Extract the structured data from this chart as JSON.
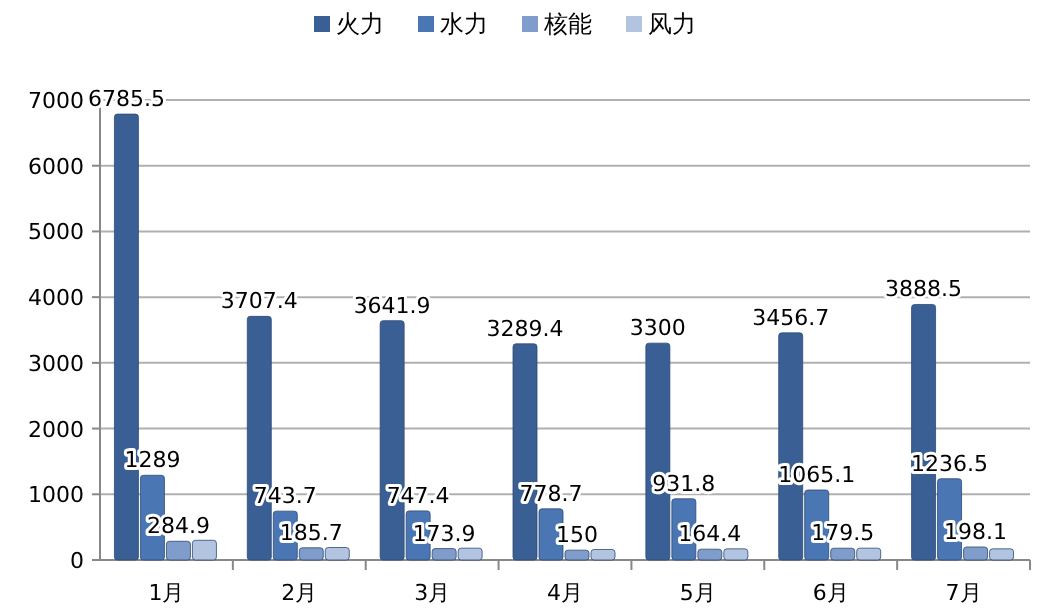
{
  "chart_data": {
    "type": "bar",
    "categories": [
      "1月",
      "2月",
      "3月",
      "4月",
      "5月",
      "6月",
      "7月"
    ],
    "series": [
      {
        "name": "火力",
        "color": "#3a5f94",
        "values": [
          6785.5,
          3707.4,
          3641.9,
          3289.4,
          3300,
          3456.7,
          3888.5
        ],
        "value_labels": [
          "6785.5",
          "3707.4",
          "3641.9",
          "3289.4",
          "3300",
          "3456.7",
          "3888.5"
        ]
      },
      {
        "name": "水力",
        "color": "#4a76b4",
        "values": [
          1289,
          743.7,
          747.4,
          778.7,
          931.8,
          1065.1,
          1236.5
        ],
        "value_labels": [
          "1289",
          "743.7",
          "747.4",
          "778.7",
          "931.8",
          "1065.1",
          "1236.5"
        ]
      },
      {
        "name": "核能",
        "color": "#7f9ccb",
        "values": [
          284.9,
          185.7,
          173.9,
          150,
          164.4,
          179.5,
          198.1
        ],
        "value_labels": [
          "284.9",
          "185.7",
          "173.9",
          "150",
          "164.4",
          "179.5",
          "198.1"
        ]
      },
      {
        "name": "风力",
        "color": "#b3c4e0",
        "values": [
          300,
          190,
          180,
          160,
          170,
          180,
          170
        ]
      }
    ],
    "ylim": [
      0,
      7000
    ],
    "yticks": [
      0,
      1000,
      2000,
      3000,
      4000,
      5000,
      6000,
      7000
    ],
    "grid": "y",
    "legend": "top"
  }
}
